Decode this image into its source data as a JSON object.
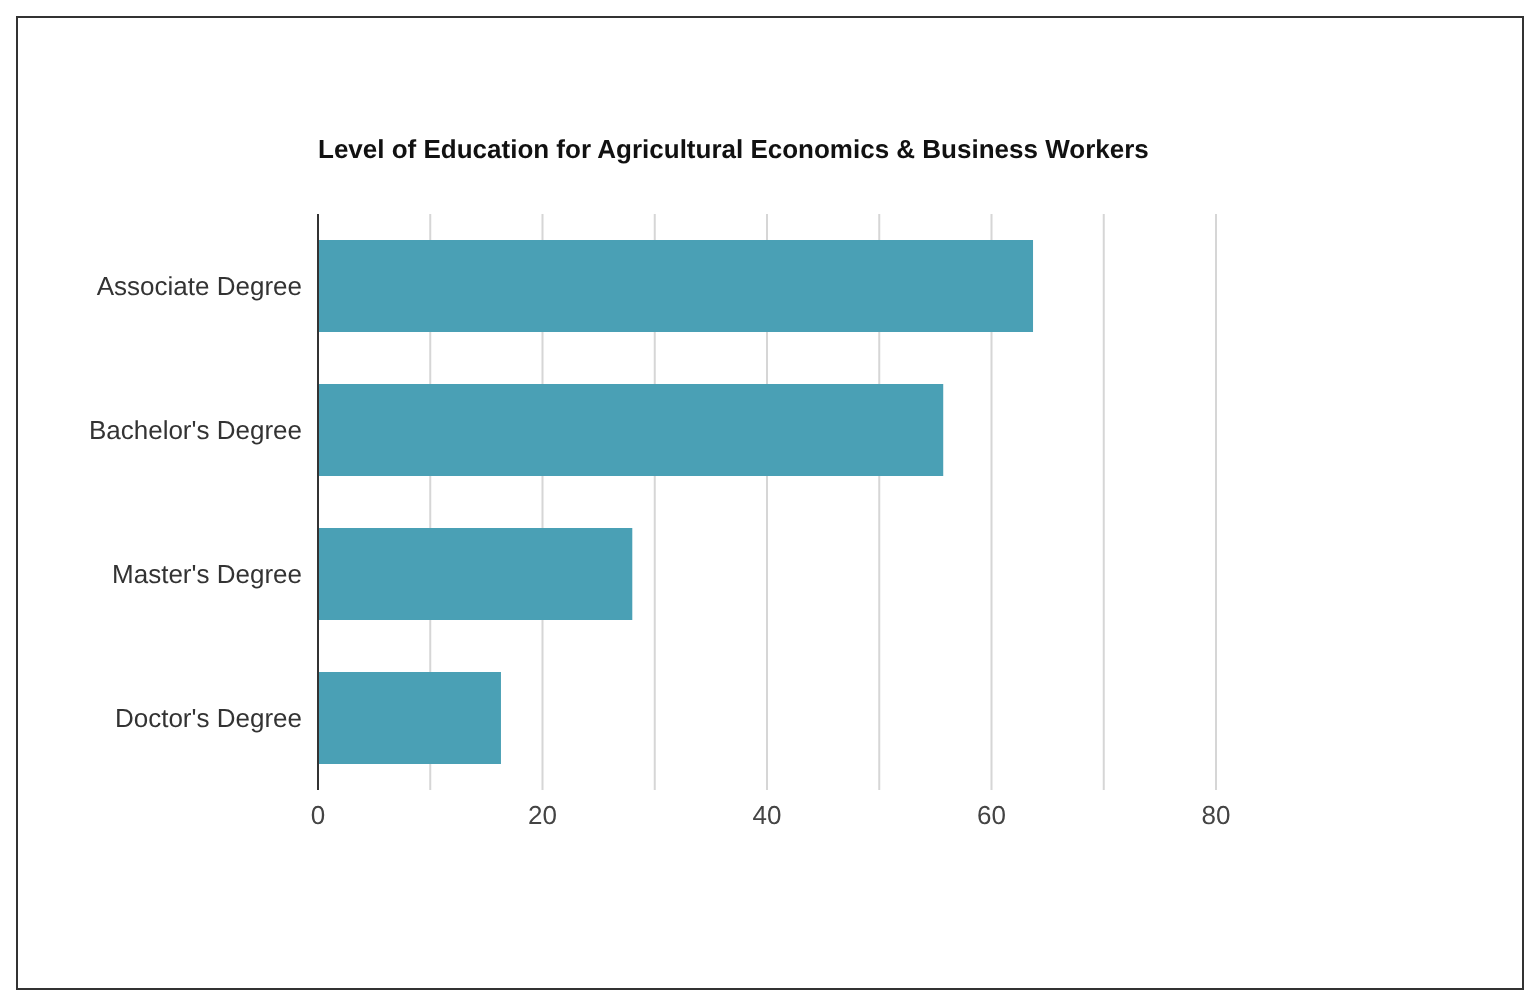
{
  "chart_data": {
    "type": "bar",
    "orientation": "horizontal",
    "title": "Level of Education for Agricultural Economics & Business Workers",
    "categories": [
      "Associate Degree",
      "Bachelor's Degree",
      "Master's Degree",
      "Doctor's Degree"
    ],
    "values": [
      63.7,
      55.7,
      28.0,
      16.3
    ],
    "color": "#4aa0b5",
    "xlim": [
      0,
      80
    ],
    "xticks": [
      0,
      {
        "value": 10,
        "label": null
      },
      20,
      {
        "value": 30,
        "label": null
      },
      40,
      {
        "value": 50,
        "label": null
      },
      60,
      {
        "value": 70,
        "label": null
      },
      80
    ],
    "grid": "x",
    "legend": false
  }
}
